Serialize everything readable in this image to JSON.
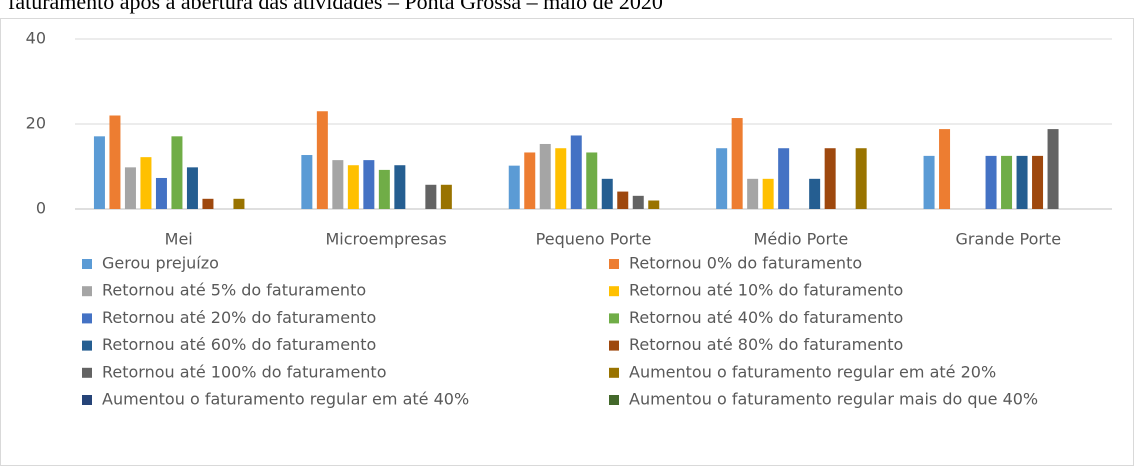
{
  "chart_data": {
    "type": "bar",
    "title": "faturamento após a abertura das atividades – Ponta Grossa – maio de 2020",
    "categories": [
      "Mei",
      "Microempresas",
      "Pequeno Porte",
      "Médio Porte",
      "Grande Porte"
    ],
    "ylim": [
      0,
      40
    ],
    "yticks": [
      0,
      20,
      40
    ],
    "grid": true,
    "legend": "bottom",
    "series": [
      {
        "name": "Gerou prejuízo",
        "color": "#5b9bd5",
        "values": [
          17.1,
          12.7,
          10.2,
          14.3,
          12.5
        ]
      },
      {
        "name": "Retornou 0% do faturamento",
        "color": "#ed7d31",
        "values": [
          22,
          23,
          13.3,
          21.4,
          18.8
        ]
      },
      {
        "name": "Retornou até 5% do faturamento",
        "color": "#a5a5a5",
        "values": [
          9.8,
          11.5,
          15.3,
          7.1,
          0
        ]
      },
      {
        "name": "Retornou até 10% do faturamento",
        "color": "#ffc000",
        "values": [
          12.2,
          10.3,
          14.3,
          7.1,
          0
        ]
      },
      {
        "name": "Retornou até 20% do faturamento",
        "color": "#4472c4",
        "values": [
          7.3,
          11.5,
          17.3,
          14.3,
          12.5
        ]
      },
      {
        "name": "Retornou até 40% do faturamento",
        "color": "#70ad47",
        "values": [
          17.1,
          9.2,
          13.3,
          0,
          12.5
        ]
      },
      {
        "name": "Retornou até 60% do faturamento",
        "color": "#255e91",
        "values": [
          9.8,
          10.3,
          7.1,
          7.1,
          12.5
        ]
      },
      {
        "name": "Retornou até 80% do faturamento",
        "color": "#9e480e",
        "values": [
          2.4,
          0,
          4.1,
          14.3,
          12.5
        ]
      },
      {
        "name": "Retornou até 100% do faturamento",
        "color": "#636363",
        "values": [
          0,
          5.7,
          3.1,
          0,
          18.8
        ]
      },
      {
        "name": "Aumentou o faturamento regular em até 20%",
        "color": "#997300",
        "values": [
          2.4,
          5.7,
          2.0,
          14.3,
          0
        ]
      },
      {
        "name": "Aumentou o faturamento regular em até 40%",
        "color": "#264478",
        "values": [
          0,
          0,
          0,
          0,
          0
        ]
      },
      {
        "name": "Aumentou o faturamento regular mais do que 40%",
        "color": "#43682b",
        "values": [
          0,
          0,
          0,
          0,
          0
        ]
      }
    ]
  }
}
